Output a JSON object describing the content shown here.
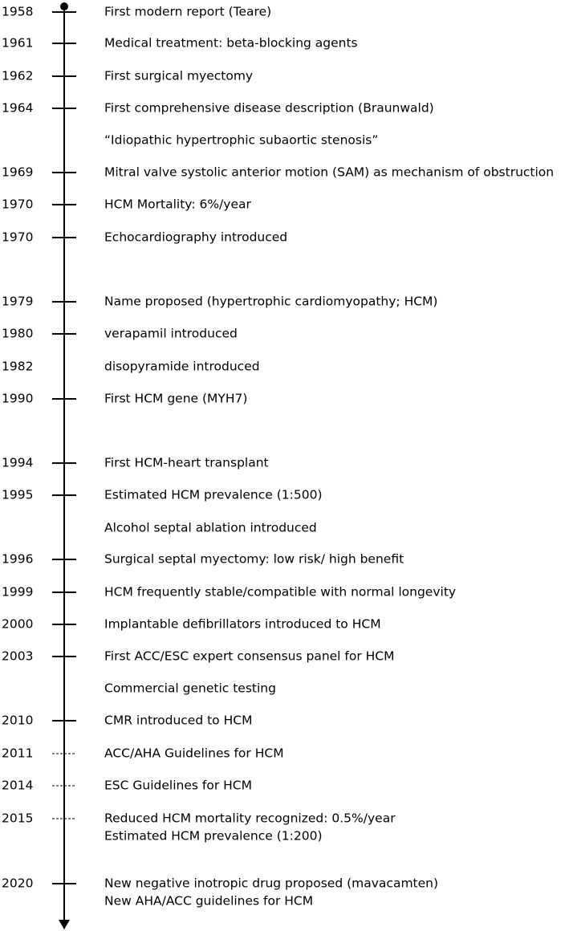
{
  "timeline": {
    "events": [
      {
        "year": "1958",
        "marker": "dot",
        "lines": [
          "First modern report (Teare)"
        ]
      },
      {
        "year": "1961",
        "marker": "tick",
        "lines": [
          "Medical treatment: beta-blocking agents"
        ]
      },
      {
        "year": "1962",
        "marker": "tick",
        "lines": [
          "First surgical myectomy"
        ]
      },
      {
        "year": "1964",
        "marker": "tick",
        "lines": [
          "First comprehensive disease description (Braunwald)"
        ]
      },
      {
        "marker": "none",
        "lines": [
          "“Idiopathic hypertrophic subaortic stenosis”"
        ]
      },
      {
        "year": "1969",
        "marker": "tick",
        "lines": [
          "Mitral valve systolic anterior motion (SAM) as mechanism of obstruction"
        ]
      },
      {
        "year": "1970",
        "marker": "tick",
        "lines": [
          "HCM Mortality: 6%/year"
        ]
      },
      {
        "year": "1970",
        "marker": "tick",
        "lines": [
          "Echocardiography introduced"
        ]
      },
      {
        "year": "1979",
        "marker": "tick",
        "lines": [
          "Name proposed (hypertrophic cardiomyopathy; HCM)"
        ]
      },
      {
        "year": "1980",
        "marker": "tick",
        "lines": [
          "verapamil introduced"
        ]
      },
      {
        "year": "1982",
        "marker": "none",
        "lines": [
          "disopyramide introduced"
        ]
      },
      {
        "year": "1990",
        "marker": "tick",
        "lines": [
          "First HCM gene (MYH7)"
        ]
      },
      {
        "year": "1994",
        "marker": "tick",
        "lines": [
          "First HCM-heart transplant"
        ]
      },
      {
        "year": "1995",
        "marker": "tick",
        "lines": [
          "Estimated HCM prevalence (1:500)"
        ]
      },
      {
        "marker": "none",
        "lines": [
          "Alcohol septal ablation introduced"
        ]
      },
      {
        "year": "1996",
        "marker": "tick",
        "lines": [
          "Surgical septal myectomy: low risk/ high benefit"
        ]
      },
      {
        "year": "1999",
        "marker": "tick",
        "lines": [
          "HCM frequently stable/compatible with normal longevity"
        ]
      },
      {
        "year": "2000",
        "marker": "tick",
        "lines": [
          "Implantable defibrillators introduced to HCM"
        ]
      },
      {
        "year": "2003",
        "marker": "tick",
        "lines": [
          "First ACC/ESC expert consensus panel for HCM"
        ]
      },
      {
        "marker": "none",
        "lines": [
          "Commercial genetic testing"
        ]
      },
      {
        "year": "2010",
        "marker": "tick",
        "lines": [
          "CMR introduced to HCM"
        ]
      },
      {
        "year": "2011",
        "marker": "dashed",
        "lines": [
          "ACC/AHA Guidelines for HCM"
        ]
      },
      {
        "year": "2014",
        "marker": "dashed",
        "lines": [
          "ESC Guidelines for HCM"
        ]
      },
      {
        "year": "2015",
        "marker": "dashed",
        "lines": [
          "Reduced HCM mortality recognized: 0.5%/year",
          "Estimated HCM prevalence (1:200)"
        ]
      },
      {
        "year": "2020",
        "marker": "tick",
        "lines": [
          "New negative inotropic drug proposed (mavacamten)",
          "New AHA/ACC guidelines for HCM"
        ]
      }
    ]
  }
}
